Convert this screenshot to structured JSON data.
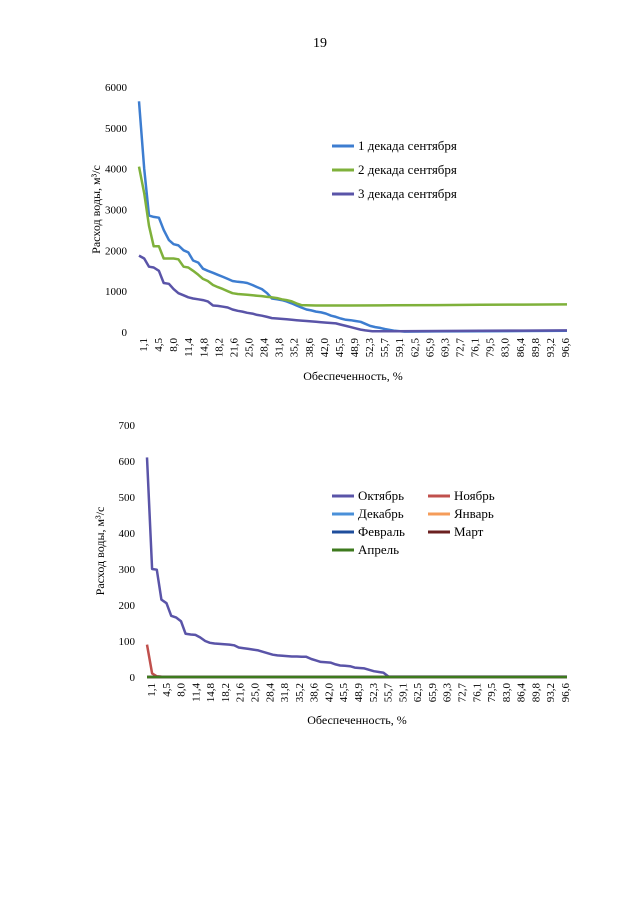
{
  "page": {
    "number": "19"
  },
  "chart_data": [
    {
      "type": "line",
      "title": "",
      "xlabel": "Обеспеченность, %",
      "ylabel": "Расход воды, м³/с",
      "ylim": [
        0,
        6000
      ],
      "yticks": [
        "0",
        "1000",
        "2000",
        "3000",
        "4000",
        "5000",
        "6000"
      ],
      "x_ticklabels": [
        "1,1",
        "4,5",
        "8,0",
        "11,4",
        "14,8",
        "18,2",
        "21,6",
        "25,0",
        "28,4",
        "31,8",
        "35,2",
        "38,6",
        "42,0",
        "45,5",
        "48,9",
        "52,3",
        "55,7",
        "59,1",
        "62,5",
        "65,9",
        "69,3",
        "72,7",
        "76,1",
        "79,5",
        "83,0",
        "86,4",
        "89,8",
        "93,2",
        "96,6"
      ],
      "legend": "right",
      "grid": false,
      "series": [
        {
          "name": "1 декада сентября",
          "color": "#3d7dd0",
          "x": [
            1.1,
            2.3,
            3.4,
            4.5,
            5.7,
            6.8,
            8.0,
            9.1,
            10.2,
            11.4,
            12.5,
            13.6,
            14.8,
            15.9,
            17.0,
            18.2,
            19.3,
            20.5,
            21.6,
            22.7,
            23.9,
            25.0,
            26.1,
            27.3,
            28.4,
            29.5,
            30.7,
            31.8,
            33.0,
            34.1,
            35.2,
            36.4,
            37.5,
            38.6,
            39.8,
            40.9,
            42.0,
            43.2,
            44.3,
            45.5,
            46.6,
            47.7,
            48.9,
            50.0,
            51.1,
            52.3,
            53.4,
            54.5,
            55.7,
            56.8,
            58.0,
            59.1,
            60.2,
            61.4,
            62.5,
            70.0,
            80.0,
            90.0,
            100.0
          ],
          "y": [
            5650,
            4000,
            2850,
            2820,
            2800,
            2500,
            2250,
            2150,
            2120,
            2000,
            1950,
            1750,
            1700,
            1550,
            1500,
            1450,
            1400,
            1350,
            1300,
            1250,
            1230,
            1220,
            1200,
            1150,
            1100,
            1050,
            950,
            820,
            800,
            780,
            750,
            700,
            650,
            600,
            550,
            530,
            500,
            480,
            450,
            400,
            370,
            330,
            300,
            290,
            270,
            250,
            200,
            150,
            120,
            100,
            70,
            50,
            30,
            20,
            10,
            15,
            20,
            25,
            30
          ]
        },
        {
          "name": "2 декада сентября",
          "color": "#7fb13b",
          "x": [
            1.1,
            2.3,
            3.4,
            4.5,
            5.7,
            6.8,
            8.0,
            9.1,
            10.2,
            11.4,
            12.5,
            13.6,
            14.8,
            15.9,
            17.0,
            18.2,
            19.3,
            20.5,
            21.6,
            22.7,
            23.9,
            25.0,
            26.1,
            27.3,
            28.4,
            29.5,
            30.7,
            31.8,
            33.0,
            34.1,
            35.2,
            36.4,
            37.5,
            38.6,
            42.0,
            50.0,
            60.0,
            70.0,
            80.0,
            90.0,
            100.0
          ],
          "y": [
            4050,
            3400,
            2600,
            2100,
            2100,
            1800,
            1800,
            1800,
            1780,
            1600,
            1580,
            1500,
            1400,
            1300,
            1250,
            1150,
            1100,
            1050,
            1000,
            950,
            930,
            920,
            910,
            900,
            890,
            880,
            860,
            850,
            830,
            800,
            780,
            750,
            700,
            660,
            650,
            650,
            655,
            660,
            665,
            670,
            675
          ]
        },
        {
          "name": "3 декада сентября",
          "color": "#5a54a8",
          "x": [
            1.1,
            2.3,
            3.4,
            4.5,
            5.7,
            6.8,
            8.0,
            9.1,
            10.2,
            11.4,
            12.5,
            13.6,
            14.8,
            15.9,
            17.0,
            18.2,
            19.3,
            20.5,
            21.6,
            22.7,
            23.9,
            25.0,
            26.1,
            27.3,
            28.4,
            29.5,
            30.7,
            31.8,
            33.0,
            34.1,
            35.2,
            36.4,
            37.5,
            38.6,
            39.8,
            40.9,
            42.0,
            43.2,
            44.3,
            45.5,
            46.6,
            47.7,
            48.9,
            50.0,
            51.1,
            52.3,
            53.4,
            55.0,
            60.0,
            70.0,
            80.0,
            90.0,
            100.0
          ],
          "y": [
            1870,
            1800,
            1600,
            1580,
            1500,
            1200,
            1180,
            1050,
            950,
            900,
            850,
            820,
            800,
            780,
            750,
            650,
            640,
            620,
            600,
            550,
            520,
            500,
            470,
            450,
            420,
            400,
            370,
            340,
            330,
            320,
            310,
            300,
            290,
            280,
            270,
            260,
            250,
            240,
            230,
            220,
            210,
            180,
            150,
            120,
            90,
            60,
            40,
            20,
            20,
            25,
            30,
            35,
            40
          ]
        }
      ]
    },
    {
      "type": "line",
      "title": "",
      "xlabel": "Обеспеченность, %",
      "ylabel": "Расход воды, м³/с",
      "ylim": [
        0,
        700
      ],
      "yticks": [
        "0",
        "100",
        "200",
        "300",
        "400",
        "500",
        "600",
        "700"
      ],
      "x_ticklabels": [
        "1,1",
        "4,5",
        "8,0",
        "11,4",
        "14,8",
        "18,2",
        "21,6",
        "25,0",
        "28,4",
        "31,8",
        "35,2",
        "38,6",
        "42,0",
        "45,5",
        "48,9",
        "52,3",
        "55,7",
        "59,1",
        "62,5",
        "65,9",
        "69,3",
        "72,7",
        "76,1",
        "79,5",
        "83,0",
        "86,4",
        "89,8",
        "93,2",
        "96,6"
      ],
      "legend": "right",
      "grid": false,
      "series": [
        {
          "name": "Октябрь",
          "color": "#5a54a8",
          "x": [
            1.1,
            2.3,
            3.4,
            4.5,
            5.7,
            6.8,
            8.0,
            9.1,
            10.2,
            11.4,
            12.5,
            13.6,
            14.8,
            15.9,
            17.0,
            18.2,
            19.3,
            20.5,
            21.6,
            22.7,
            23.9,
            25.0,
            26.1,
            27.3,
            28.4,
            29.5,
            30.7,
            31.8,
            33.0,
            34.1,
            35.2,
            36.4,
            37.5,
            38.6,
            39.8,
            40.9,
            42.0,
            43.2,
            44.3,
            45.5,
            46.6,
            47.7,
            48.9,
            50.0,
            51.1,
            52.3,
            53.4,
            54.5,
            55.7,
            56.8,
            58.0,
            70.0,
            80.0,
            90.0,
            100.0
          ],
          "y": [
            610,
            300,
            298,
            215,
            205,
            170,
            165,
            155,
            120,
            118,
            117,
            110,
            100,
            95,
            93,
            92,
            91,
            90,
            88,
            82,
            80,
            78,
            76,
            74,
            70,
            66,
            62,
            60,
            59,
            58,
            57,
            57,
            56,
            56,
            50,
            46,
            42,
            41,
            40,
            35,
            32,
            31,
            30,
            26,
            25,
            24,
            20,
            16,
            14,
            12,
            1,
            1,
            1,
            1,
            1
          ]
        },
        {
          "name": "Ноябрь",
          "color": "#c0504d",
          "x": [
            1.1,
            2.3,
            3.4,
            4.5
          ],
          "y": [
            90,
            10,
            2,
            1
          ]
        },
        {
          "name": "Декабрь",
          "color": "#4a90d9",
          "x": [
            1.1,
            100.0
          ],
          "y": [
            0,
            0
          ]
        },
        {
          "name": "Январь",
          "color": "#f59c5a",
          "x": [
            1.1,
            100.0
          ],
          "y": [
            0,
            0
          ]
        },
        {
          "name": "Февраль",
          "color": "#1f4e9c",
          "x": [
            1.1,
            100.0
          ],
          "y": [
            0,
            0
          ]
        },
        {
          "name": "Март",
          "color": "#6b2020",
          "x": [
            1.1,
            100.0
          ],
          "y": [
            0,
            0
          ]
        },
        {
          "name": "Апрель",
          "color": "#3e7a1e",
          "x": [
            1.1,
            100.0
          ],
          "y": [
            0,
            0
          ]
        }
      ]
    }
  ]
}
